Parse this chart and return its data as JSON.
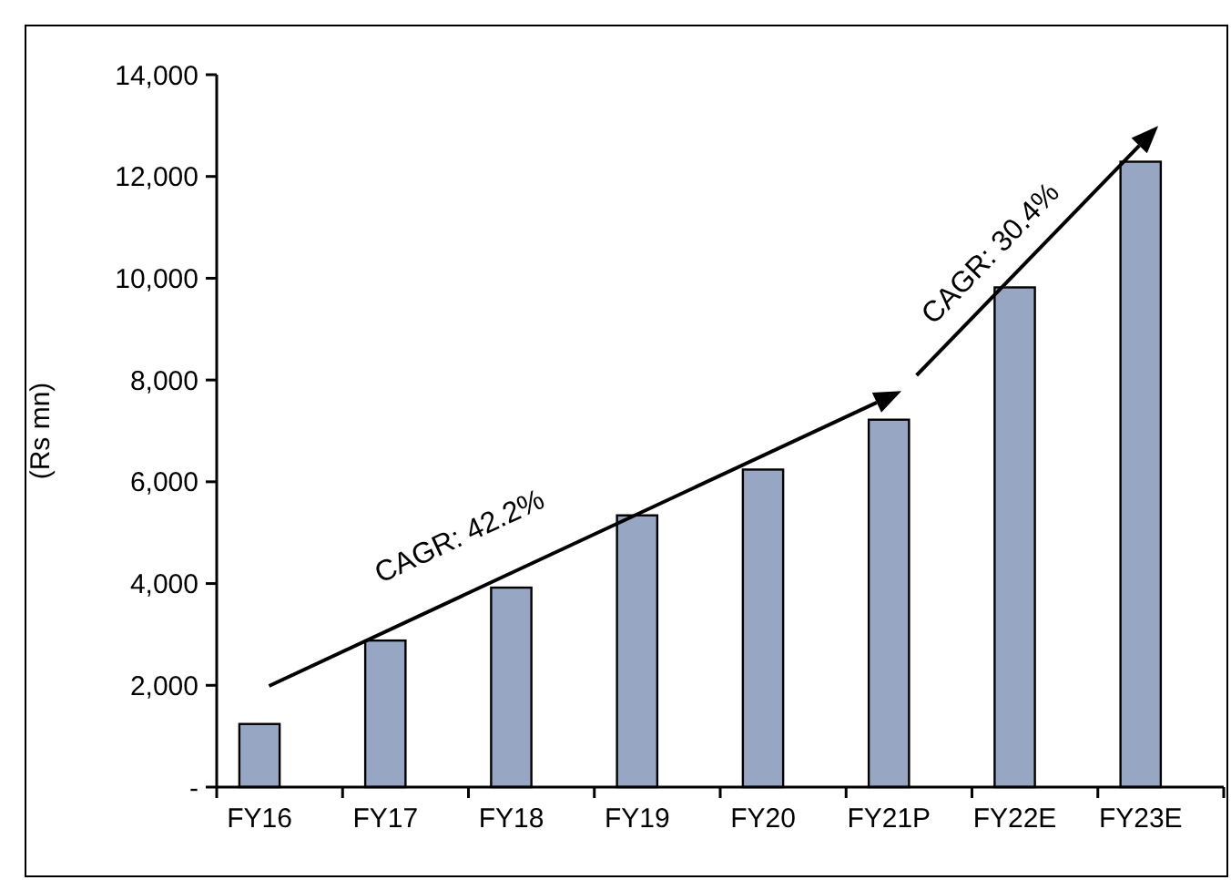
{
  "chart_data": {
    "type": "bar",
    "ylabel": "(Rs mn)",
    "categories": [
      "FY16",
      "FY17",
      "FY18",
      "FY19",
      "FY20",
      "FY21P",
      "FY22E",
      "FY23E"
    ],
    "values": [
      1240,
      2880,
      3920,
      5340,
      6240,
      7220,
      9820,
      12290
    ],
    "color": "#97a7c3",
    "ylim": [
      0,
      14000
    ],
    "yticks": [
      {
        "value": 0,
        "label": "-"
      },
      {
        "value": 2000,
        "label": "2,000"
      },
      {
        "value": 4000,
        "label": "4,000"
      },
      {
        "value": 6000,
        "label": "6,000"
      },
      {
        "value": 8000,
        "label": "8,000"
      },
      {
        "value": 10000,
        "label": "10,000"
      },
      {
        "value": 12000,
        "label": "12,000"
      },
      {
        "value": 14000,
        "label": "14,000"
      }
    ],
    "annotations": [
      "CAGR: 42.2%",
      "CAGR: 30.4%"
    ],
    "grid": false
  }
}
